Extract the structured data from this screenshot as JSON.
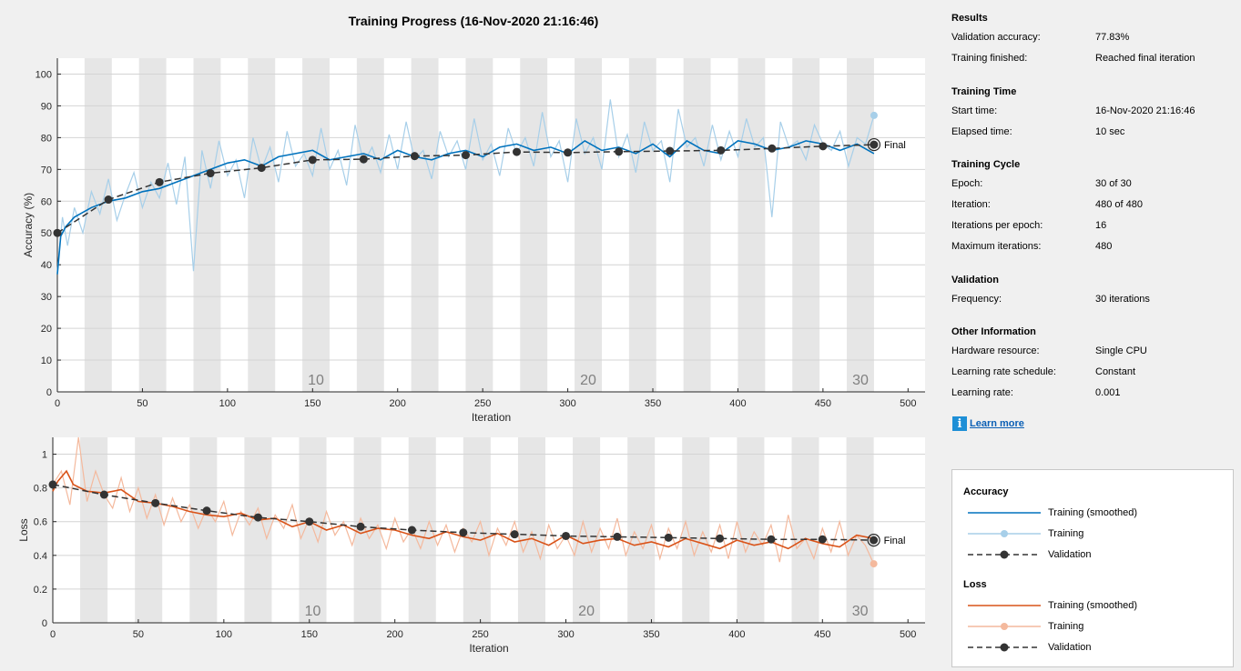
{
  "chart_data": [
    {
      "type": "line",
      "title": "Training Progress (16-Nov-2020 21:16:46)",
      "xlabel": "Iteration",
      "ylabel": "Accuracy (%)",
      "xlim": [
        0,
        510
      ],
      "ylim": [
        0,
        105
      ],
      "xticks": [
        "0",
        "50",
        "100",
        "150",
        "200",
        "250",
        "300",
        "350",
        "400",
        "450",
        "500"
      ],
      "yticks": [
        "0",
        "10",
        "20",
        "30",
        "40",
        "50",
        "60",
        "70",
        "80",
        "90",
        "100"
      ],
      "epoch_labels": [
        "10",
        "20",
        "30"
      ],
      "grid": true,
      "series": [
        {
          "name": "Training (smoothed)",
          "color": "#0072bd",
          "x": [
            0,
            2,
            5,
            10,
            20,
            30,
            40,
            50,
            60,
            70,
            80,
            90,
            100,
            110,
            120,
            130,
            140,
            150,
            160,
            170,
            180,
            190,
            200,
            210,
            220,
            230,
            240,
            250,
            260,
            270,
            280,
            290,
            300,
            310,
            320,
            330,
            340,
            350,
            360,
            370,
            380,
            390,
            400,
            410,
            420,
            430,
            440,
            450,
            460,
            470,
            480
          ],
          "values": [
            37,
            49,
            52,
            55,
            58,
            60,
            61,
            63,
            64,
            66,
            68,
            70,
            72,
            73,
            71,
            74,
            75,
            76,
            73,
            74,
            75,
            73,
            76,
            74,
            73,
            75,
            76,
            74,
            77,
            78,
            76,
            77,
            75,
            79,
            76,
            77,
            75,
            78,
            74,
            79,
            76,
            75,
            79,
            78,
            76,
            77,
            79,
            78,
            76,
            78,
            75
          ]
        },
        {
          "name": "Training",
          "color": "#a7cfe9",
          "x": [
            0,
            3,
            6,
            10,
            15,
            20,
            25,
            30,
            35,
            40,
            45,
            50,
            55,
            60,
            65,
            70,
            75,
            80,
            85,
            90,
            95,
            100,
            105,
            110,
            115,
            120,
            125,
            130,
            135,
            140,
            145,
            150,
            155,
            160,
            165,
            170,
            175,
            180,
            185,
            190,
            195,
            200,
            205,
            210,
            215,
            220,
            225,
            230,
            235,
            240,
            245,
            250,
            255,
            260,
            265,
            270,
            275,
            280,
            285,
            290,
            295,
            300,
            305,
            310,
            315,
            320,
            325,
            330,
            335,
            340,
            345,
            350,
            355,
            360,
            365,
            370,
            375,
            380,
            385,
            390,
            395,
            400,
            405,
            410,
            415,
            420,
            425,
            430,
            435,
            440,
            445,
            450,
            455,
            460,
            465,
            470,
            475,
            480
          ],
          "values": [
            38,
            55,
            46,
            58,
            50,
            63,
            56,
            67,
            54,
            62,
            69,
            58,
            66,
            61,
            72,
            59,
            74,
            38,
            76,
            64,
            79,
            68,
            73,
            61,
            80,
            70,
            77,
            66,
            82,
            71,
            75,
            68,
            83,
            70,
            76,
            65,
            84,
            72,
            77,
            69,
            81,
            70,
            85,
            73,
            76,
            67,
            82,
            74,
            79,
            70,
            86,
            73,
            78,
            68,
            83,
            75,
            80,
            71,
            88,
            74,
            79,
            66,
            86,
            75,
            80,
            70,
            92,
            74,
            81,
            69,
            85,
            76,
            79,
            66,
            89,
            77,
            80,
            71,
            84,
            73,
            82,
            74,
            86,
            77,
            80,
            55,
            85,
            77,
            79,
            73,
            84,
            78,
            76,
            82,
            71,
            80,
            78,
            87
          ]
        },
        {
          "name": "Validation",
          "color": "#333333",
          "x": [
            0,
            30,
            60,
            90,
            120,
            150,
            180,
            210,
            240,
            270,
            300,
            330,
            360,
            390,
            420,
            450,
            480
          ],
          "values": [
            50,
            60.5,
            66,
            68.8,
            70.5,
            73,
            73.2,
            74.2,
            74.5,
            75.5,
            75.3,
            75.6,
            75.8,
            76,
            76.6,
            77.3,
            77.8
          ]
        }
      ],
      "final_label": "Final"
    },
    {
      "type": "line",
      "xlabel": "Iteration",
      "ylabel": "Loss",
      "xlim": [
        0,
        510
      ],
      "ylim": [
        0,
        1.1
      ],
      "xticks": [
        "0",
        "50",
        "100",
        "150",
        "200",
        "250",
        "300",
        "350",
        "400",
        "450",
        "500"
      ],
      "yticks": [
        "0",
        "0.2",
        "0.4",
        "0.6",
        "0.8",
        "1"
      ],
      "epoch_labels": [
        "10",
        "20",
        "30"
      ],
      "grid": true,
      "series": [
        {
          "name": "Training (smoothed)",
          "color": "#d95319",
          "x": [
            0,
            3,
            8,
            12,
            20,
            30,
            40,
            50,
            60,
            70,
            80,
            90,
            100,
            110,
            120,
            130,
            140,
            150,
            160,
            170,
            180,
            190,
            200,
            210,
            220,
            230,
            240,
            250,
            260,
            270,
            280,
            290,
            300,
            310,
            320,
            330,
            340,
            350,
            360,
            370,
            380,
            390,
            400,
            410,
            420,
            430,
            440,
            450,
            460,
            470,
            480
          ],
          "values": [
            0.78,
            0.84,
            0.9,
            0.82,
            0.78,
            0.77,
            0.79,
            0.72,
            0.71,
            0.69,
            0.66,
            0.64,
            0.63,
            0.65,
            0.61,
            0.62,
            0.57,
            0.6,
            0.55,
            0.58,
            0.53,
            0.56,
            0.55,
            0.52,
            0.5,
            0.54,
            0.51,
            0.49,
            0.53,
            0.48,
            0.5,
            0.46,
            0.52,
            0.47,
            0.49,
            0.5,
            0.46,
            0.48,
            0.45,
            0.5,
            0.47,
            0.44,
            0.49,
            0.46,
            0.48,
            0.44,
            0.5,
            0.47,
            0.45,
            0.52,
            0.5
          ]
        },
        {
          "name": "Training",
          "color": "#f4b99d",
          "x": [
            0,
            5,
            10,
            15,
            20,
            25,
            30,
            35,
            40,
            45,
            50,
            55,
            60,
            65,
            70,
            75,
            80,
            85,
            90,
            95,
            100,
            105,
            110,
            115,
            120,
            125,
            130,
            135,
            140,
            145,
            150,
            155,
            160,
            165,
            170,
            175,
            180,
            185,
            190,
            195,
            200,
            205,
            210,
            215,
            220,
            225,
            230,
            235,
            240,
            245,
            250,
            255,
            260,
            265,
            270,
            275,
            280,
            285,
            290,
            295,
            300,
            305,
            310,
            315,
            320,
            325,
            330,
            335,
            340,
            345,
            350,
            355,
            360,
            365,
            370,
            375,
            380,
            385,
            390,
            395,
            400,
            405,
            410,
            415,
            420,
            425,
            430,
            435,
            440,
            445,
            450,
            455,
            460,
            465,
            470,
            475,
            480
          ],
          "values": [
            0.82,
            0.9,
            0.7,
            1.1,
            0.72,
            0.9,
            0.76,
            0.68,
            0.86,
            0.66,
            0.8,
            0.62,
            0.76,
            0.58,
            0.74,
            0.6,
            0.7,
            0.56,
            0.68,
            0.6,
            0.72,
            0.52,
            0.66,
            0.58,
            0.68,
            0.5,
            0.64,
            0.56,
            0.7,
            0.5,
            0.62,
            0.48,
            0.66,
            0.52,
            0.6,
            0.46,
            0.62,
            0.5,
            0.58,
            0.44,
            0.62,
            0.48,
            0.56,
            0.44,
            0.6,
            0.46,
            0.58,
            0.42,
            0.56,
            0.48,
            0.6,
            0.4,
            0.56,
            0.46,
            0.6,
            0.42,
            0.54,
            0.38,
            0.58,
            0.44,
            0.52,
            0.4,
            0.6,
            0.42,
            0.56,
            0.44,
            0.62,
            0.4,
            0.54,
            0.44,
            0.58,
            0.38,
            0.56,
            0.44,
            0.6,
            0.4,
            0.54,
            0.42,
            0.58,
            0.38,
            0.6,
            0.42,
            0.54,
            0.46,
            0.58,
            0.36,
            0.64,
            0.44,
            0.5,
            0.38,
            0.56,
            0.42,
            0.6,
            0.4,
            0.52,
            0.46,
            0.35
          ]
        },
        {
          "name": "Validation",
          "color": "#333333",
          "x": [
            0,
            30,
            60,
            90,
            120,
            150,
            180,
            210,
            240,
            270,
            300,
            330,
            360,
            390,
            420,
            450,
            480
          ],
          "values": [
            0.82,
            0.76,
            0.71,
            0.665,
            0.625,
            0.6,
            0.57,
            0.55,
            0.535,
            0.525,
            0.515,
            0.51,
            0.505,
            0.5,
            0.495,
            0.495,
            0.49
          ]
        }
      ],
      "final_label": "Final"
    }
  ],
  "results": {
    "title": "Results",
    "rows": [
      {
        "k": "Validation accuracy:",
        "v": "77.83%"
      },
      {
        "k": "Training finished:",
        "v": "Reached final iteration"
      }
    ]
  },
  "time": {
    "title": "Training Time",
    "rows": [
      {
        "k": "Start time:",
        "v": "16-Nov-2020 21:16:46"
      },
      {
        "k": "Elapsed time:",
        "v": "10 sec"
      }
    ]
  },
  "cycle": {
    "title": "Training Cycle",
    "rows": [
      {
        "k": "Epoch:",
        "v": "30 of 30"
      },
      {
        "k": "Iteration:",
        "v": "480 of 480"
      },
      {
        "k": "Iterations per epoch:",
        "v": "16"
      },
      {
        "k": "Maximum iterations:",
        "v": "480"
      }
    ]
  },
  "validation": {
    "title": "Validation",
    "rows": [
      {
        "k": "Frequency:",
        "v": "30 iterations"
      }
    ]
  },
  "other": {
    "title": "Other Information",
    "rows": [
      {
        "k": "Hardware resource:",
        "v": "Single CPU"
      },
      {
        "k": "Learning rate schedule:",
        "v": "Constant"
      },
      {
        "k": "Learning rate:",
        "v": "0.001"
      }
    ]
  },
  "learn_more": {
    "icon": "info-icon",
    "label": "Learn more"
  },
  "legend": {
    "accuracy_title": "Accuracy",
    "loss_title": "Loss",
    "items": {
      "acc_smoothed": {
        "label": "Training (smoothed)",
        "color": "#0072bd"
      },
      "acc_training": {
        "label": "Training",
        "color": "#a7cfe9"
      },
      "acc_validation": {
        "label": "Validation",
        "color": "#333333"
      },
      "loss_smoothed": {
        "label": "Training (smoothed)",
        "color": "#d95319"
      },
      "loss_training": {
        "label": "Training",
        "color": "#f4b99d"
      },
      "loss_validation": {
        "label": "Validation",
        "color": "#333333"
      }
    }
  }
}
